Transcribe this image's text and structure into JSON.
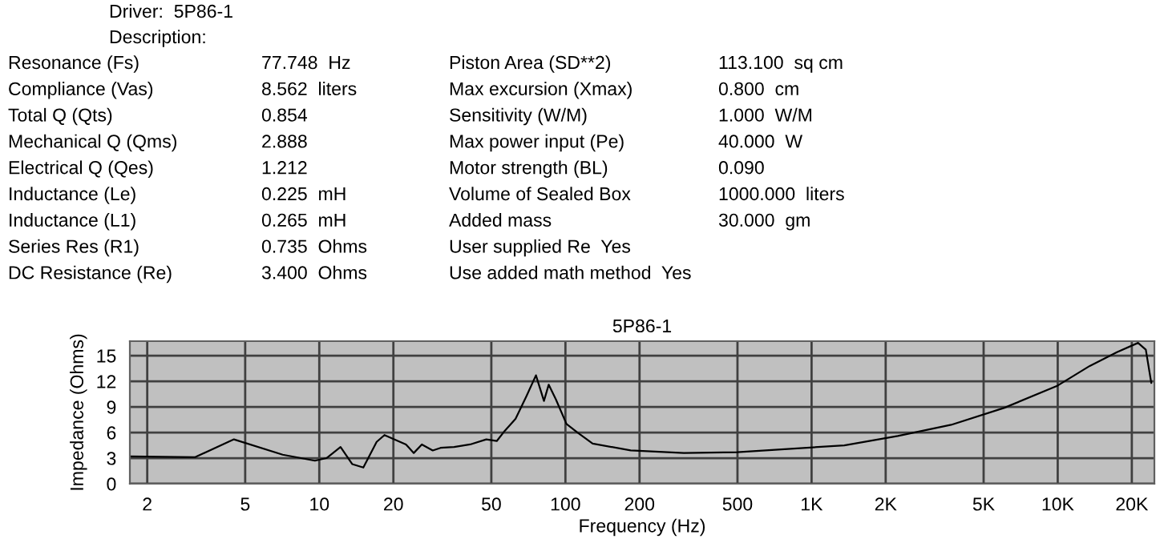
{
  "chart_data": {
    "type": "line",
    "title": "5P86-1",
    "xlabel": "Frequency (Hz)",
    "ylabel": "Impedance (Ohms)",
    "log": "x",
    "grid": true,
    "color": "#000000",
    "x": [
      1.7,
      3.12,
      4.5,
      7.1,
      9.6,
      10.7,
      12.2,
      13.6,
      15.1,
      17.1,
      18.4,
      22.5,
      24.2,
      26.1,
      28.9,
      31.1,
      35.3,
      41,
      47.7,
      52.6,
      56.7,
      62.7,
      69.3,
      75.9,
      81.8,
      85.5,
      91.4,
      101,
      112,
      129,
      184,
      303,
      499,
      824,
      1358,
      2240,
      3690,
      6080,
      10000,
      13500,
      17400,
      21200,
      22800,
      24000
    ],
    "values": [
      3.2,
      3.1,
      5.2,
      3.4,
      2.7,
      3.0,
      4.3,
      2.3,
      1.9,
      4.9,
      5.7,
      4.6,
      3.6,
      4.6,
      3.9,
      4.2,
      4.3,
      4.6,
      5.2,
      5.0,
      6.2,
      7.6,
      10.2,
      12.7,
      9.7,
      11.6,
      9.9,
      7.0,
      6.0,
      4.7,
      3.9,
      3.6,
      3.7,
      4.1,
      4.5,
      5.6,
      6.9,
      8.9,
      11.5,
      13.8,
      15.4,
      16.5,
      15.7,
      11.8
    ],
    "xlim": [
      1.7,
      24700
    ],
    "ylim": [
      0,
      16.7
    ],
    "xticks": [
      2,
      5,
      10,
      20,
      50,
      100,
      200,
      500,
      {
        "value": 1000,
        "label": "1K"
      },
      {
        "value": 2000,
        "label": "2K"
      },
      {
        "value": 5000,
        "label": "5K"
      },
      {
        "value": 10000,
        "label": "10K"
      },
      {
        "value": 20000,
        "label": "20K"
      }
    ],
    "yticks": [
      0,
      3,
      6,
      9,
      12,
      15
    ],
    "annotations": [
      "Driver:  5P86-1",
      "Description:",
      "Resonance (Fs)",
      "77.748  Hz",
      "Compliance (Vas)",
      "8.562  liters",
      "Total Q (Qts)",
      "0.854",
      "Mechanical Q (Qms)",
      "2.888",
      "Electrical Q (Qes)",
      "1.212",
      "Inductance (Le)",
      "0.225  mH",
      "Inductance (L1)",
      "0.265  mH",
      "Series Res (R1)",
      "0.735  Ohms",
      "DC Resistance (Re)",
      "3.400  Ohms",
      "Piston Area (SD**2)",
      "113.100  sq cm",
      "Max excursion (Xmax)",
      "0.800  cm",
      "Sensitivity (W/M)",
      "1.000  W/M",
      "Max power input (Pe)",
      "40.000  W",
      "Motor strength (BL)",
      "0.090",
      "Volume of Sealed Box",
      "1000.000  liters",
      "Added mass",
      "30.000  gm",
      "User supplied Re  Yes",
      "Use added math method  Yes"
    ]
  }
}
